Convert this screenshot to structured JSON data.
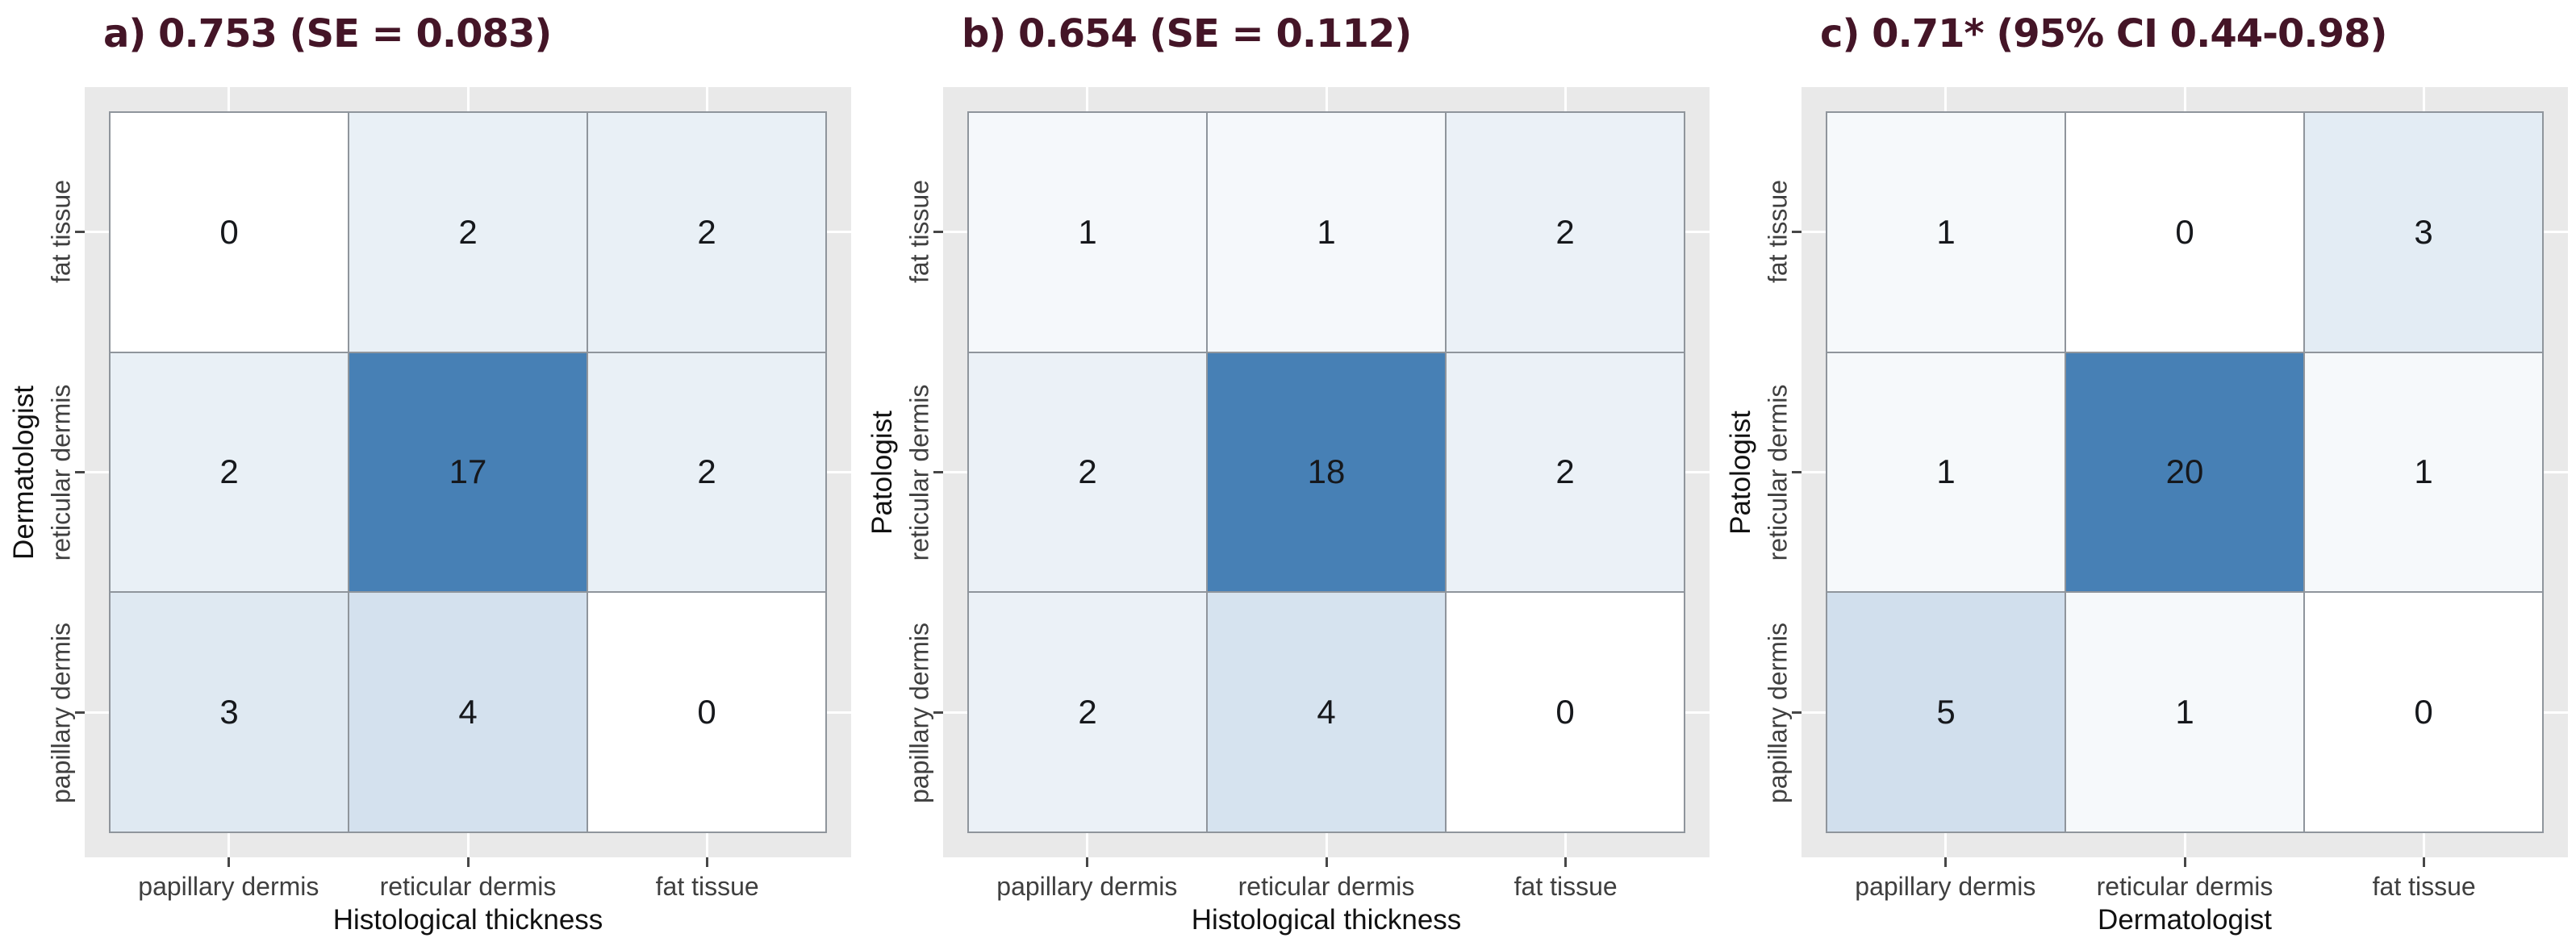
{
  "figure": {
    "description": "Three confusion-matrix heatmaps comparing histological thickness ratings"
  },
  "colors": {
    "title_text": "#441527",
    "heat_max": "#4780b5",
    "heat_min": "#ffffff",
    "panel_background": "#e9e9e9",
    "cell_border": "#8f959c",
    "tick_text": "#3f3f3f",
    "axis_title_text": "#111111",
    "value_text": "#16181c",
    "tick_mark": "#474747",
    "gridline": "#ffffff"
  },
  "chart_data": [
    {
      "type": "heatmap",
      "title": "a) 0.753 (SE = 0.083)",
      "xlabel": "Histological thickness",
      "ylabel": "Dermatologist",
      "x_categories": [
        "papillary dermis",
        "reticular dermis",
        "fat tissue"
      ],
      "y_categories": [
        "fat tissue",
        "reticular dermis",
        "papillary dermis"
      ],
      "rows": [
        [
          0,
          2,
          2
        ],
        [
          2,
          17,
          2
        ],
        [
          3,
          4,
          0
        ]
      ],
      "max_value": 17,
      "legend": "none",
      "grid": "white major gridlines at category centers"
    },
    {
      "type": "heatmap",
      "title": "b) 0.654 (SE = 0.112)",
      "xlabel": "Histological thickness",
      "ylabel": "Patologist",
      "x_categories": [
        "papillary dermis",
        "reticular dermis",
        "fat tissue"
      ],
      "y_categories": [
        "fat tissue",
        "reticular dermis",
        "papillary dermis"
      ],
      "rows": [
        [
          1,
          1,
          2
        ],
        [
          2,
          18,
          2
        ],
        [
          2,
          4,
          0
        ]
      ],
      "max_value": 18,
      "legend": "none",
      "grid": "white major gridlines at category centers"
    },
    {
      "type": "heatmap",
      "title": "c) 0.71* (95% CI 0.44-0.98)",
      "xlabel": "Dermatologist",
      "ylabel": "Patologist",
      "x_categories": [
        "papillary dermis",
        "reticular dermis",
        "fat tissue"
      ],
      "y_categories": [
        "fat tissue",
        "reticular dermis",
        "papillary dermis"
      ],
      "rows": [
        [
          1,
          0,
          3
        ],
        [
          1,
          20,
          1
        ],
        [
          5,
          1,
          0
        ]
      ],
      "max_value": 20,
      "legend": "none",
      "grid": "white major gridlines at category centers"
    }
  ]
}
